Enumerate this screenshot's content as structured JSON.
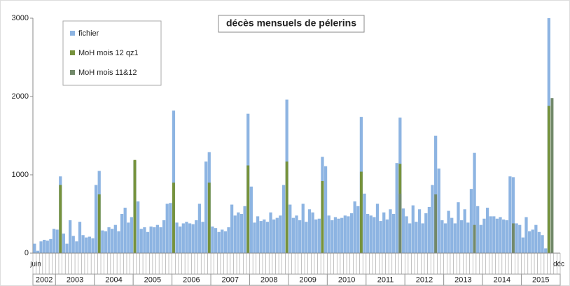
{
  "chart_data": {
    "type": "bar",
    "title": "décès mensuels de pélerins",
    "categories": [
      "juin",
      null,
      null,
      null,
      null,
      null,
      null,
      null,
      null,
      null,
      null,
      null,
      null,
      null,
      null,
      null,
      null,
      null,
      null,
      null,
      null,
      null,
      null,
      null,
      null,
      null,
      null,
      null,
      null,
      null,
      null,
      null,
      null,
      null,
      null,
      null,
      null,
      null,
      null,
      null,
      null,
      null,
      null,
      null,
      null,
      null,
      null,
      null,
      null,
      null,
      null,
      null,
      null,
      null,
      null,
      null,
      null,
      null,
      null,
      null,
      null,
      null,
      null,
      null,
      null,
      null,
      null,
      null,
      null,
      null,
      null,
      null,
      null,
      null,
      null,
      null,
      null,
      null,
      null,
      null,
      null,
      null,
      null,
      null,
      null,
      null,
      null,
      null,
      null,
      null,
      null,
      null,
      null,
      null,
      null,
      null,
      null,
      null,
      null,
      null,
      null,
      null,
      null,
      null,
      null,
      null,
      null,
      null,
      null,
      null,
      null,
      null,
      null,
      null,
      null,
      null,
      null,
      null,
      null,
      null,
      null,
      null,
      null,
      null,
      null,
      null,
      null,
      null,
      null,
      null,
      null,
      null,
      null,
      null,
      null,
      null,
      null,
      null,
      null,
      null,
      null,
      null,
      null,
      null,
      null,
      null,
      null,
      null,
      null,
      null,
      null,
      null,
      null,
      null,
      null,
      null,
      null,
      null,
      null,
      null,
      null,
      null,
      "déc"
    ],
    "year_labels": [
      "2002",
      "2003",
      "2004",
      "2005",
      "2006",
      "2007",
      "2008",
      "2009",
      "2010",
      "2011",
      "2012",
      "2013",
      "2014",
      "2015"
    ],
    "series": [
      {
        "name": "fichier",
        "color": "#8db4e2",
        "values": [
          120,
          30,
          150,
          170,
          160,
          180,
          310,
          300,
          980,
          250,
          120,
          420,
          220,
          150,
          400,
          230,
          200,
          210,
          190,
          870,
          1050,
          290,
          280,
          330,
          310,
          360,
          280,
          500,
          580,
          390,
          460,
          1180,
          660,
          310,
          330,
          270,
          340,
          330,
          360,
          330,
          420,
          630,
          640,
          1820,
          390,
          340,
          380,
          400,
          380,
          370,
          420,
          630,
          400,
          1170,
          1290,
          340,
          320,
          270,
          300,
          280,
          330,
          620,
          480,
          520,
          500,
          600,
          1780,
          850,
          390,
          470,
          410,
          430,
          400,
          520,
          430,
          450,
          480,
          870,
          1960,
          620,
          450,
          480,
          420,
          630,
          400,
          560,
          520,
          430,
          440,
          1230,
          1110,
          480,
          420,
          460,
          440,
          450,
          480,
          470,
          510,
          660,
          600,
          1740,
          760,
          500,
          480,
          460,
          630,
          410,
          520,
          430,
          560,
          500,
          1150,
          1730,
          570,
          470,
          380,
          610,
          400,
          560,
          380,
          510,
          590,
          870,
          1500,
          1080,
          420,
          380,
          540,
          450,
          380,
          650,
          420,
          560,
          390,
          820,
          1280,
          600,
          360,
          440,
          580,
          470,
          470,
          440,
          460,
          430,
          420,
          980,
          970,
          380,
          360,
          200,
          460,
          280,
          300,
          360,
          270,
          230,
          60,
          3000,
          null,
          null,
          null
        ]
      },
      {
        "name": "MoH mois 12 qz1",
        "color": "#76923c",
        "values": [
          null,
          null,
          null,
          null,
          null,
          null,
          null,
          null,
          870,
          null,
          null,
          null,
          null,
          null,
          null,
          null,
          null,
          null,
          null,
          null,
          750,
          null,
          null,
          null,
          null,
          null,
          null,
          null,
          null,
          null,
          null,
          1190,
          null,
          null,
          null,
          null,
          null,
          null,
          null,
          null,
          null,
          null,
          null,
          900,
          null,
          null,
          null,
          null,
          null,
          null,
          null,
          null,
          null,
          null,
          900,
          null,
          null,
          null,
          null,
          null,
          null,
          null,
          null,
          null,
          null,
          null,
          1120,
          null,
          null,
          null,
          null,
          null,
          null,
          null,
          null,
          null,
          null,
          null,
          1170,
          null,
          null,
          null,
          null,
          null,
          null,
          null,
          null,
          null,
          null,
          920,
          null,
          null,
          null,
          null,
          null,
          null,
          null,
          null,
          null,
          null,
          null,
          1040,
          null,
          null,
          null,
          null,
          null,
          null,
          null,
          null,
          null,
          null,
          null,
          1140,
          null,
          null,
          null,
          null,
          null,
          null,
          null,
          null,
          null,
          null,
          null,
          null,
          null,
          null,
          null,
          null,
          null,
          null,
          null,
          null,
          null,
          null,
          null,
          null,
          null,
          null,
          null,
          null,
          null,
          null,
          null,
          null,
          null,
          null,
          null,
          null,
          null,
          null,
          null,
          null,
          null,
          null,
          null,
          null,
          null,
          1880,
          null,
          null,
          null
        ]
      },
      {
        "name": "MoH mois 11&12",
        "color": "#72896a",
        "values": [
          null,
          null,
          null,
          null,
          null,
          null,
          null,
          null,
          null,
          null,
          null,
          null,
          null,
          null,
          null,
          null,
          null,
          null,
          null,
          null,
          null,
          null,
          null,
          null,
          null,
          null,
          null,
          null,
          null,
          null,
          null,
          null,
          null,
          null,
          null,
          null,
          null,
          null,
          null,
          null,
          null,
          null,
          null,
          null,
          null,
          null,
          null,
          null,
          null,
          null,
          null,
          null,
          null,
          null,
          null,
          null,
          null,
          null,
          null,
          null,
          null,
          null,
          null,
          null,
          null,
          null,
          null,
          null,
          null,
          null,
          null,
          null,
          null,
          null,
          null,
          null,
          null,
          null,
          null,
          null,
          null,
          null,
          null,
          null,
          null,
          null,
          null,
          null,
          null,
          null,
          null,
          null,
          null,
          null,
          null,
          null,
          null,
          null,
          null,
          null,
          null,
          null,
          null,
          null,
          null,
          null,
          null,
          null,
          null,
          null,
          null,
          null,
          null,
          760,
          null,
          null,
          null,
          null,
          null,
          null,
          null,
          null,
          null,
          null,
          750,
          null,
          null,
          null,
          null,
          null,
          null,
          null,
          null,
          null,
          null,
          null,
          360,
          null,
          null,
          null,
          null,
          null,
          null,
          null,
          null,
          null,
          null,
          null,
          380,
          null,
          null,
          null,
          null,
          null,
          null,
          null,
          null,
          null,
          null,
          null,
          1980,
          null,
          null
        ]
      }
    ],
    "ylim": [
      0,
      3000
    ],
    "yticks": [
      0,
      1000,
      2000,
      3000
    ],
    "grid": false
  }
}
